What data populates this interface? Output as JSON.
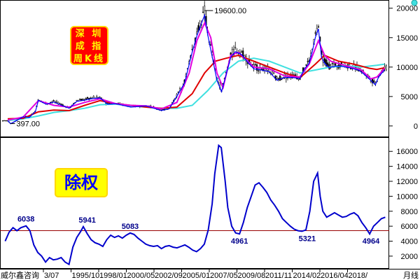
{
  "title_box": {
    "line1": "深 圳",
    "line2": "成 指",
    "line3": "周K线"
  },
  "adjusted_label": "除权",
  "x_axis": {
    "left_label": "威尔鑫咨询",
    "right_label": "月线",
    "ticks": [
      "3/07",
      "1995/10",
      "1998/01",
      "2000/05",
      "2002/09",
      "2005/01",
      "2007/05",
      "2009/08",
      "2011/11",
      "2014/02",
      "2016/04",
      "2018/"
    ]
  },
  "colors": {
    "candles": "#000000",
    "ma_red": "#e00000",
    "ma_magenta": "#e000e0",
    "ma_cyan": "#40e0e0",
    "ma_blue": "#0000ff",
    "line": "#0000cc",
    "ref_line": "#990000",
    "label": "#00008b"
  },
  "chart_data": [
    {
      "type": "line",
      "panel": "upper",
      "yticks": [
        0,
        5000,
        10000,
        15000,
        20000
      ],
      "ylim": [
        -1200,
        20800
      ],
      "annotations": [
        {
          "text": "19600.00",
          "x": 2007.8,
          "y": 19600
        },
        {
          "text": "397.00",
          "x": 1995.2,
          "y": 397
        }
      ],
      "series": [
        {
          "key": "price",
          "x": [
            1995.0,
            1995.2,
            1995.6,
            1996.0,
            1996.4,
            1996.8,
            1997.0,
            1997.5,
            1998.0,
            1998.5,
            1999.0,
            1999.5,
            2000.0,
            2000.5,
            2001.0,
            2001.5,
            2002.0,
            2003.0,
            2004.0,
            2005.0,
            2005.5,
            2006.0,
            2006.5,
            2007.0,
            2007.3,
            2007.6,
            2007.8,
            2008.0,
            2008.3,
            2008.6,
            2008.9,
            2009.2,
            2009.5,
            2009.8,
            2010.2,
            2010.6,
            2011.0,
            2011.5,
            2012.0,
            2012.5,
            2013.0,
            2013.5,
            2014.0,
            2014.3,
            2014.6,
            2014.8,
            2015.0,
            2015.2,
            2015.4,
            2015.6,
            2015.9,
            2016.3,
            2016.8,
            2017.2,
            2017.8,
            2018.2,
            2018.6,
            2018.9,
            2019.1,
            2019.3,
            2019.5
          ],
          "y": [
            900,
            397,
            1000,
            1600,
            1500,
            2500,
            4500,
            3800,
            4200,
            3600,
            3100,
            4300,
            4500,
            4800,
            4900,
            3800,
            3900,
            3300,
            3500,
            2700,
            3000,
            5200,
            7500,
            13000,
            15800,
            18000,
            19400,
            16000,
            12000,
            8000,
            6000,
            9000,
            12000,
            13000,
            12500,
            11200,
            10000,
            9800,
            9500,
            8000,
            8500,
            8500,
            8300,
            10000,
            11000,
            13000,
            15500,
            17000,
            12000,
            11000,
            10200,
            10500,
            10400,
            10200,
            9800,
            9000,
            8000,
            7200,
            8500,
            9200,
            9800
          ]
        },
        {
          "key": "ma_magenta",
          "x": [
            1995.0,
            1996.0,
            1997.0,
            1998.0,
            1999.0,
            2000.0,
            2001.0,
            2002.0,
            2003.0,
            2004.0,
            2005.0,
            2006.0,
            2006.8,
            2007.3,
            2007.8,
            2008.2,
            2008.6,
            2009.0,
            2009.5,
            2010.0,
            2011.0,
            2012.0,
            2013.0,
            2014.0,
            2014.6,
            2015.2,
            2015.6,
            2016.0,
            2017.0,
            2018.0,
            2018.6,
            2019.0,
            2019.5
          ],
          "y": [
            1000,
            1500,
            4300,
            3500,
            3200,
            4000,
            4600,
            3800,
            3500,
            3400,
            2900,
            4000,
            9000,
            14500,
            17500,
            15000,
            9000,
            6500,
            12000,
            12500,
            10000,
            9700,
            8500,
            8300,
            10500,
            14500,
            12000,
            11000,
            10200,
            9500,
            8000,
            8300,
            9800
          ]
        },
        {
          "key": "ma_red",
          "x": [
            1995.0,
            1996.0,
            1997.0,
            1998.0,
            1999.0,
            2000.0,
            2001.0,
            2002.0,
            2003.0,
            2004.0,
            2005.0,
            2006.0,
            2007.0,
            2007.8,
            2008.5,
            2009.2,
            2010.0,
            2011.0,
            2012.0,
            2013.0,
            2014.0,
            2015.0,
            2015.6,
            2016.5,
            2017.5,
            2018.5,
            2019.0,
            2019.5
          ],
          "y": [
            1200,
            1300,
            2400,
            2700,
            2600,
            3500,
            4300,
            3800,
            3500,
            3200,
            3000,
            3200,
            5500,
            9000,
            11000,
            11500,
            12000,
            11000,
            10000,
            9000,
            8200,
            10500,
            12000,
            11000,
            10500,
            9800,
            9600,
            9900
          ]
        },
        {
          "key": "ma_cyan",
          "x": [
            1995.0,
            1996.0,
            1997.0,
            1998.0,
            1999.0,
            2000.0,
            2001.0,
            2002.0,
            2003.0,
            2004.0,
            2005.0,
            2006.0,
            2007.0,
            2008.0,
            2009.0,
            2010.0,
            2011.0,
            2012.0,
            2013.0,
            2014.0,
            2015.0,
            2016.0,
            2017.0,
            2018.0,
            2019.0,
            2019.5
          ],
          "y": [
            900,
            1200,
            1700,
            2300,
            2600,
            3000,
            3600,
            3700,
            3400,
            3200,
            3000,
            3000,
            3500,
            6000,
            9000,
            11000,
            11500,
            11000,
            10000,
            9000,
            9500,
            10000,
            10200,
            10000,
            10300,
            10500
          ]
        }
      ]
    },
    {
      "type": "line",
      "panel": "lower",
      "yticks": [
        2000,
        4000,
        6000,
        8000,
        10000,
        12000,
        14000,
        16000
      ],
      "ylim": [
        400,
        17800
      ],
      "reference_line": 5400,
      "labels": [
        {
          "text": "6038",
          "x": 1992.6,
          "y": 6038,
          "position": "above"
        },
        {
          "text": "5941",
          "x": 1997.3,
          "y": 5941,
          "position": "above"
        },
        {
          "text": "5083",
          "x": 2000.6,
          "y": 5083,
          "position": "above"
        },
        {
          "text": "4961",
          "x": 2009.0,
          "y": 4961,
          "position": "below"
        },
        {
          "text": "5321",
          "x": 2014.2,
          "y": 5321,
          "position": "below"
        },
        {
          "text": "4964",
          "x": 2019.1,
          "y": 4964,
          "position": "below"
        }
      ],
      "x": [
        1991.0,
        1991.3,
        1991.6,
        1991.9,
        1992.2,
        1992.6,
        1992.9,
        1993.2,
        1993.5,
        1993.8,
        1994.1,
        1994.4,
        1994.7,
        1995.0,
        1995.3,
        1995.6,
        1995.9,
        1996.2,
        1996.5,
        1996.8,
        1997.0,
        1997.3,
        1997.6,
        1997.9,
        1998.2,
        1998.5,
        1998.8,
        1999.1,
        1999.4,
        1999.7,
        2000.0,
        2000.3,
        2000.6,
        2000.9,
        2001.2,
        2001.5,
        2001.8,
        2002.1,
        2002.4,
        2002.7,
        2003.0,
        2003.3,
        2003.6,
        2003.9,
        2004.2,
        2004.5,
        2004.8,
        2005.1,
        2005.4,
        2005.7,
        2006.0,
        2006.3,
        2006.6,
        2006.9,
        2007.1,
        2007.4,
        2007.6,
        2007.9,
        2008.1,
        2008.4,
        2008.7,
        2009.0,
        2009.3,
        2009.6,
        2009.9,
        2010.2,
        2010.5,
        2010.8,
        2011.1,
        2011.4,
        2011.7,
        2012.0,
        2012.3,
        2012.6,
        2012.9,
        2013.2,
        2013.5,
        2013.8,
        2014.1,
        2014.4,
        2014.7,
        2015.0,
        2015.2,
        2015.4,
        2015.7,
        2016.0,
        2016.3,
        2016.6,
        2016.9,
        2017.2,
        2017.5,
        2017.8,
        2018.1,
        2018.4,
        2018.7,
        2019.0,
        2019.3,
        2019.6,
        2019.9,
        2020.2
      ],
      "y": [
        4000,
        5200,
        5800,
        5400,
        5800,
        6038,
        5400,
        3500,
        2500,
        2000,
        1200,
        1800,
        1500,
        1600,
        1800,
        1200,
        900,
        3200,
        4500,
        5300,
        5941,
        5000,
        4200,
        3800,
        3600,
        3300,
        4200,
        4800,
        4500,
        4700,
        4400,
        4800,
        5083,
        4900,
        4400,
        4000,
        3600,
        3400,
        3300,
        3400,
        3000,
        3300,
        3400,
        3200,
        3100,
        3300,
        3500,
        3200,
        2800,
        2600,
        3000,
        3600,
        5500,
        9000,
        13000,
        16800,
        16500,
        12000,
        8500,
        6000,
        5100,
        4961,
        6500,
        8500,
        10000,
        11500,
        11800,
        11200,
        10500,
        9500,
        8800,
        8000,
        7000,
        6500,
        6000,
        5600,
        5400,
        5321,
        5500,
        8000,
        12000,
        13100,
        10000,
        8000,
        7200,
        7500,
        7800,
        7500,
        7200,
        7300,
        7600,
        7800,
        7400,
        6500,
        5800,
        4964,
        6000,
        6500,
        7000,
        7200
      ]
    }
  ]
}
